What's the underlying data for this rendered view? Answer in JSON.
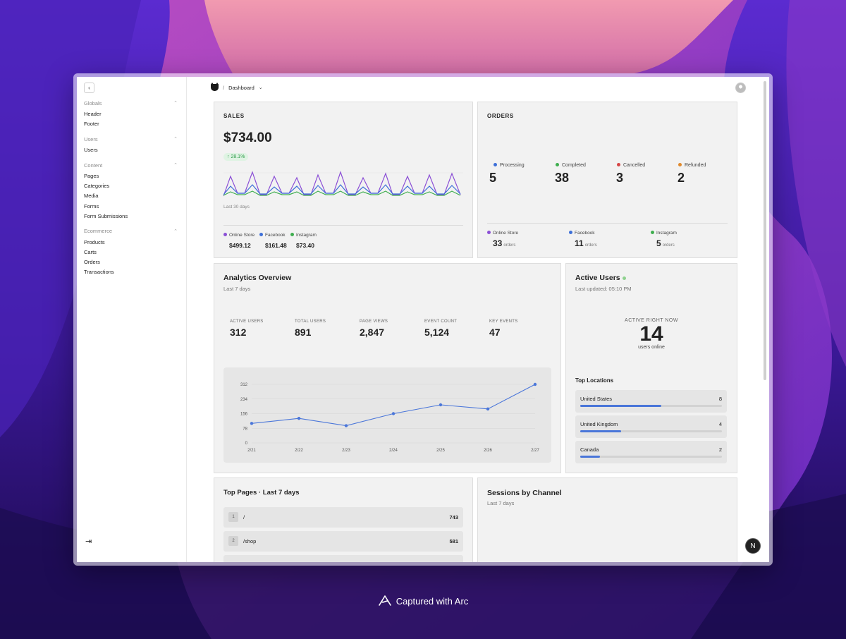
{
  "colors": {
    "online_store": "#8b4fd6",
    "facebook": "#3d6fd8",
    "instagram": "#3fae4f",
    "processing": "#3d6fd8",
    "completed": "#3fae4f",
    "cancelled": "#d64545",
    "refunded": "#e0892c",
    "accent_blue": "#4a76d9"
  },
  "sidebar": {
    "collapse_icon": "chevron-left-icon",
    "groups": [
      {
        "label": "Globals",
        "items": [
          "Header",
          "Footer"
        ]
      },
      {
        "label": "Users",
        "items": [
          "Users"
        ]
      },
      {
        "label": "Content",
        "items": [
          "Pages",
          "Categories",
          "Media",
          "Forms",
          "Form Submissions"
        ]
      },
      {
        "label": "Ecommerce",
        "items": [
          "Products",
          "Carts",
          "Orders",
          "Transactions"
        ]
      }
    ],
    "logout_icon": "logout-icon"
  },
  "topbar": {
    "separator": "/",
    "crumb": "Dashboard"
  },
  "sales": {
    "label": "SALES",
    "amount": "$734.00",
    "change": "28.1%",
    "period": "Last 30 days",
    "sources": [
      {
        "name": "Online Store",
        "value": "$499.12"
      },
      {
        "name": "Facebook",
        "value": "$161.48"
      },
      {
        "name": "Instagram",
        "value": "$73.40"
      }
    ]
  },
  "orders": {
    "label": "ORDERS",
    "statuses": [
      {
        "name": "Processing",
        "count": "5"
      },
      {
        "name": "Completed",
        "count": "38"
      },
      {
        "name": "Cancelled",
        "count": "3"
      },
      {
        "name": "Refunded",
        "count": "2"
      }
    ],
    "sources": [
      {
        "name": "Online Store",
        "count": "33",
        "unit": "orders"
      },
      {
        "name": "Facebook",
        "count": "11",
        "unit": "orders"
      },
      {
        "name": "Instagram",
        "count": "5",
        "unit": "orders"
      }
    ]
  },
  "analytics": {
    "title": "Analytics Overview",
    "period": "Last 7 days",
    "metrics": [
      {
        "label": "ACTIVE USERS",
        "value": "312"
      },
      {
        "label": "TOTAL USERS",
        "value": "891"
      },
      {
        "label": "PAGE VIEWS",
        "value": "2,847"
      },
      {
        "label": "EVENT COUNT",
        "value": "5,124"
      },
      {
        "label": "KEY EVENTS",
        "value": "47"
      }
    ]
  },
  "chart_data": {
    "type": "line",
    "categories": [
      "2/21",
      "2/22",
      "2/23",
      "2/24",
      "2/25",
      "2/26",
      "2/27"
    ],
    "values": [
      104,
      131,
      92,
      156,
      203,
      181,
      312
    ],
    "yticks": [
      "0",
      "78",
      "156",
      "234",
      "312"
    ],
    "ylim": [
      0,
      312
    ],
    "grid": true
  },
  "active_users": {
    "title": "Active Users",
    "updated": "Last updated: 05:10 PM",
    "now_label": "ACTIVE RIGHT NOW",
    "count": "14",
    "unit": "users online",
    "locations_title": "Top Locations",
    "locations": [
      {
        "name": "United States",
        "count": "8",
        "share": 0.57
      },
      {
        "name": "United Kingdom",
        "count": "4",
        "share": 0.29
      },
      {
        "name": "Canada",
        "count": "2",
        "share": 0.14
      }
    ]
  },
  "top_pages": {
    "title": "Top Pages · Last 7 days",
    "rows": [
      {
        "rank": "1",
        "path": "/",
        "count": "743"
      },
      {
        "rank": "2",
        "path": "/shop",
        "count": "581"
      }
    ]
  },
  "sessions": {
    "title": "Sessions by Channel",
    "period": "Last 7 days"
  },
  "fab_label": "N",
  "caption": "Captured with Arc"
}
